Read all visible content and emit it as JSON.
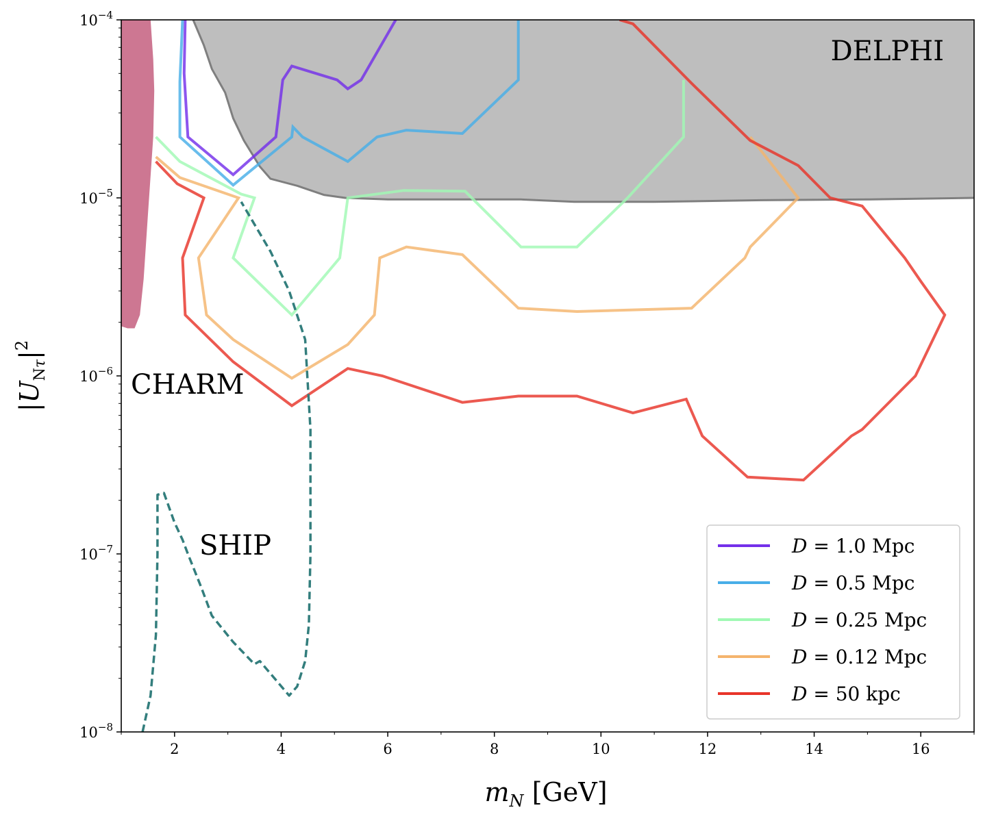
{
  "chart_data": {
    "type": "line",
    "xlabel": "m_N [GeV]",
    "ylabel": "|U_Nτ|²",
    "xlim": [
      1,
      17
    ],
    "ylim": [
      1e-08,
      0.0001
    ],
    "yscale": "log",
    "xticks": [
      2,
      4,
      6,
      8,
      10,
      12,
      14,
      16
    ],
    "yticks": [
      {
        "value": 1e-08,
        "base": "10",
        "exp": "−8"
      },
      {
        "value": 1e-07,
        "base": "10",
        "exp": "−7"
      },
      {
        "value": 1e-06,
        "base": "10",
        "exp": "−6"
      },
      {
        "value": 1e-05,
        "base": "10",
        "exp": "−5"
      },
      {
        "value": 0.0001,
        "base": "10",
        "exp": "−4"
      }
    ],
    "regions": [
      {
        "name": "DELPHI",
        "label": "DELPHI",
        "color": "#bebebe",
        "edge_color": "#7f7f7f",
        "boundary": [
          [
            2.35,
            0.0001
          ],
          [
            2.55,
            7.2e-05
          ],
          [
            2.7,
            5.3e-05
          ],
          [
            2.95,
            3.9e-05
          ],
          [
            3.1,
            2.8e-05
          ],
          [
            3.3,
            2.1e-05
          ],
          [
            3.6,
            1.5e-05
          ],
          [
            3.8,
            1.28e-05
          ],
          [
            4.3,
            1.17e-05
          ],
          [
            4.8,
            1.04e-05
          ],
          [
            5.2,
            1e-05
          ],
          [
            6.0,
            9.8e-06
          ],
          [
            8.5,
            9.8e-06
          ],
          [
            9.5,
            9.5e-06
          ],
          [
            11.0,
            9.5e-06
          ],
          [
            13.0,
            9.7e-06
          ],
          [
            15.0,
            9.8e-06
          ],
          [
            17.0,
            1e-05
          ]
        ]
      },
      {
        "name": "CHARM",
        "label": "CHARM",
        "color": "#cd7792",
        "boundary": [
          [
            1.0,
            1.9e-06
          ],
          [
            1.12,
            1.85e-06
          ],
          [
            1.25,
            1.85e-06
          ],
          [
            1.35,
            2.2e-06
          ],
          [
            1.42,
            3.5e-06
          ],
          [
            1.5,
            8e-06
          ],
          [
            1.6,
            2.2e-05
          ],
          [
            1.62,
            4e-05
          ],
          [
            1.6,
            6e-05
          ],
          [
            1.55,
            0.0001
          ],
          [
            1.0,
            0.0001
          ]
        ]
      }
    ],
    "series": [
      {
        "name": "D = 1.0 Mpc",
        "legend": {
          "lhs": "D",
          "rhs": " = 1.0 Mpc"
        },
        "color": "#7430ea",
        "points": [
          [
            2.2,
            0.0001
          ],
          [
            2.18,
            5e-05
          ],
          [
            2.25,
            2.2e-05
          ],
          [
            3.1,
            1.35e-05
          ],
          [
            3.9,
            2.2e-05
          ],
          [
            4.03,
            4.6e-05
          ],
          [
            4.2,
            5.5e-05
          ],
          [
            5.05,
            4.6e-05
          ],
          [
            5.25,
            4.1e-05
          ],
          [
            5.5,
            4.6e-05
          ],
          [
            6.15,
            0.0001
          ]
        ]
      },
      {
        "name": "D = 0.5 Mpc",
        "legend": {
          "lhs": "D",
          "rhs": " = 0.5 Mpc"
        },
        "color": "#48aee8",
        "points": [
          [
            2.15,
            0.0001
          ],
          [
            2.1,
            4.5e-05
          ],
          [
            2.1,
            2.2e-05
          ],
          [
            3.1,
            1.18e-05
          ],
          [
            4.2,
            2.2e-05
          ],
          [
            4.22,
            2.5e-05
          ],
          [
            4.4,
            2.2e-05
          ],
          [
            5.25,
            1.6e-05
          ],
          [
            5.8,
            2.2e-05
          ],
          [
            6.35,
            2.4e-05
          ],
          [
            7.4,
            2.3e-05
          ],
          [
            8.45,
            4.6e-05
          ],
          [
            8.45,
            0.0001
          ]
        ]
      },
      {
        "name": "D = 0.25 Mpc",
        "legend": {
          "lhs": "D",
          "rhs": " = 0.25 Mpc"
        },
        "color": "#a1f9b4",
        "points": [
          [
            1.65,
            2.2e-05
          ],
          [
            2.1,
            1.6e-05
          ],
          [
            3.25,
            1.05e-05
          ],
          [
            3.5,
            1e-05
          ],
          [
            3.1,
            4.6e-06
          ],
          [
            4.2,
            2.2e-06
          ],
          [
            5.1,
            4.6e-06
          ],
          [
            5.25,
            1e-05
          ],
          [
            6.3,
            1.1e-05
          ],
          [
            7.45,
            1.09e-05
          ],
          [
            8.5,
            5.3e-06
          ],
          [
            9.55,
            5.3e-06
          ],
          [
            10.5,
            1e-05
          ],
          [
            11.55,
            2.2e-05
          ],
          [
            11.55,
            4.6e-05
          ]
        ]
      },
      {
        "name": "D = 0.12 Mpc",
        "legend": {
          "lhs": "D",
          "rhs": " = 0.12 Mpc"
        },
        "color": "#f4b46d",
        "points": [
          [
            1.65,
            1.7e-05
          ],
          [
            2.1,
            1.3e-05
          ],
          [
            3.2,
            1e-05
          ],
          [
            2.45,
            4.6e-06
          ],
          [
            2.6,
            2.2e-06
          ],
          [
            3.1,
            1.6e-06
          ],
          [
            4.2,
            9.7e-07
          ],
          [
            5.25,
            1.5e-06
          ],
          [
            5.75,
            2.2e-06
          ],
          [
            5.85,
            4.6e-06
          ],
          [
            6.35,
            5.3e-06
          ],
          [
            7.4,
            4.8e-06
          ],
          [
            8.45,
            2.4e-06
          ],
          [
            9.55,
            2.3e-06
          ],
          [
            11.7,
            2.4e-06
          ],
          [
            12.7,
            4.6e-06
          ],
          [
            12.8,
            5.3e-06
          ],
          [
            13.7,
            1e-05
          ],
          [
            12.8,
            2.2e-05
          ]
        ]
      },
      {
        "name": "D = 50 kpc",
        "legend": {
          "lhs": "D",
          "rhs": " = 50 kpc"
        },
        "color": "#e8342a",
        "points": [
          [
            1.65,
            1.6e-05
          ],
          [
            2.05,
            1.2e-05
          ],
          [
            2.55,
            1e-05
          ],
          [
            2.15,
            4.6e-06
          ],
          [
            2.2,
            2.2e-06
          ],
          [
            3.1,
            1.2e-06
          ],
          [
            4.2,
            6.8e-07
          ],
          [
            5.25,
            1.1e-06
          ],
          [
            5.9,
            1e-06
          ],
          [
            7.4,
            7.1e-07
          ],
          [
            8.45,
            7.7e-07
          ],
          [
            9.55,
            7.7e-07
          ],
          [
            10.6,
            6.2e-07
          ],
          [
            11.6,
            7.4e-07
          ],
          [
            11.9,
            4.6e-07
          ],
          [
            12.75,
            2.7e-07
          ],
          [
            13.8,
            2.6e-07
          ],
          [
            14.7,
            4.6e-07
          ],
          [
            14.9,
            5e-07
          ],
          [
            15.9,
            1e-06
          ],
          [
            16.45,
            2.2e-06
          ],
          [
            16.0,
            3.4e-06
          ],
          [
            15.7,
            4.6e-06
          ],
          [
            14.9,
            9e-06
          ],
          [
            14.3,
            1e-05
          ],
          [
            13.7,
            1.52e-05
          ],
          [
            12.8,
            2.1e-05
          ],
          [
            11.7,
            4.4e-05
          ],
          [
            10.6,
            9.5e-05
          ],
          [
            10.35,
            0.0001
          ]
        ]
      }
    ],
    "dashed_curves": [
      {
        "name": "SHIP",
        "label": "SHIP",
        "color": "#337e7d",
        "points": [
          [
            1.4,
            1e-08
          ],
          [
            1.55,
            1.6e-08
          ],
          [
            1.65,
            3.5e-08
          ],
          [
            1.68,
            1e-07
          ],
          [
            1.68,
            2.15e-07
          ],
          [
            1.8,
            2.2e-07
          ],
          [
            2.0,
            1.5e-07
          ],
          [
            2.15,
            1.2e-07
          ],
          [
            2.25,
            1e-07
          ],
          [
            2.5,
            6.5e-08
          ],
          [
            2.7,
            4.5e-08
          ],
          [
            3.1,
            3.2e-08
          ],
          [
            3.5,
            2.4e-08
          ],
          [
            3.6,
            2.5e-08
          ],
          [
            4.15,
            1.6e-08
          ],
          [
            4.3,
            1.8e-08
          ],
          [
            4.45,
            2.5e-08
          ],
          [
            4.52,
            4e-08
          ],
          [
            4.55,
            1e-07
          ],
          [
            4.55,
            5e-07
          ],
          [
            4.45,
            1.6e-06
          ],
          [
            4.15,
            3e-06
          ],
          [
            3.8,
            5e-06
          ],
          [
            3.25,
            9.5e-06
          ]
        ]
      }
    ],
    "legend_position": "lower-right"
  }
}
